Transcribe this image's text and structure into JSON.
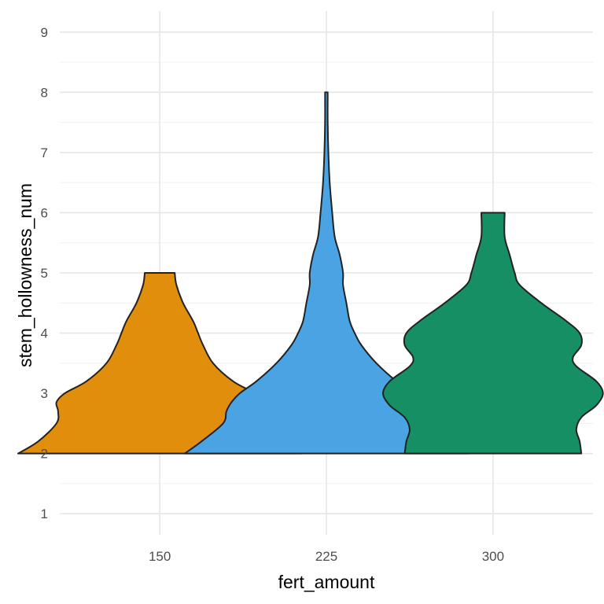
{
  "chart_data": {
    "type": "violin",
    "xlabel": "fert_amount",
    "ylabel": "stem_hollowness_num",
    "categories": [
      "150",
      "225",
      "300"
    ],
    "ylim": [
      0.65,
      9.35
    ],
    "yticks": [
      1,
      2,
      3,
      4,
      5,
      6,
      7,
      8,
      9
    ],
    "grid": true,
    "legend": "none",
    "colors": [
      "#E08E0B",
      "#4AA3E2",
      "#158F63"
    ],
    "series": [
      {
        "category": "150",
        "color": "#E08E0B",
        "min": 2,
        "max": 5,
        "profile": [
          [
            2.0,
            0.85
          ],
          [
            2.2,
            0.73
          ],
          [
            2.5,
            0.62
          ],
          [
            2.7,
            0.61
          ],
          [
            2.85,
            0.62
          ],
          [
            3.0,
            0.57
          ],
          [
            3.2,
            0.44
          ],
          [
            3.5,
            0.32
          ],
          [
            3.8,
            0.26
          ],
          [
            4.0,
            0.23
          ],
          [
            4.2,
            0.2
          ],
          [
            4.5,
            0.14
          ],
          [
            4.8,
            0.1
          ],
          [
            5.0,
            0.09
          ]
        ]
      },
      {
        "category": "225",
        "color": "#4AA3E2",
        "min": 2,
        "max": 8,
        "profile": [
          [
            2.0,
            0.85
          ],
          [
            2.2,
            0.75
          ],
          [
            2.5,
            0.62
          ],
          [
            2.7,
            0.6
          ],
          [
            2.85,
            0.57
          ],
          [
            3.0,
            0.52
          ],
          [
            3.2,
            0.42
          ],
          [
            3.5,
            0.3
          ],
          [
            3.8,
            0.21
          ],
          [
            4.0,
            0.17
          ],
          [
            4.2,
            0.14
          ],
          [
            4.5,
            0.12
          ],
          [
            4.8,
            0.1
          ],
          [
            5.0,
            0.1
          ],
          [
            5.3,
            0.08
          ],
          [
            5.6,
            0.05
          ],
          [
            6.0,
            0.035
          ],
          [
            6.5,
            0.02
          ],
          [
            7.0,
            0.012
          ],
          [
            7.5,
            0.008
          ],
          [
            8.0,
            0.008
          ]
        ]
      },
      {
        "category": "300",
        "color": "#158F63",
        "min": 2,
        "max": 6,
        "profile": [
          [
            2.0,
            0.53
          ],
          [
            2.2,
            0.52
          ],
          [
            2.4,
            0.5
          ],
          [
            2.6,
            0.53
          ],
          [
            2.8,
            0.62
          ],
          [
            3.0,
            0.66
          ],
          [
            3.2,
            0.62
          ],
          [
            3.45,
            0.5
          ],
          [
            3.6,
            0.48
          ],
          [
            3.8,
            0.53
          ],
          [
            4.0,
            0.52
          ],
          [
            4.2,
            0.44
          ],
          [
            4.5,
            0.29
          ],
          [
            4.8,
            0.16
          ],
          [
            5.0,
            0.13
          ],
          [
            5.3,
            0.1
          ],
          [
            5.6,
            0.07
          ],
          [
            6.0,
            0.07
          ]
        ]
      }
    ]
  }
}
